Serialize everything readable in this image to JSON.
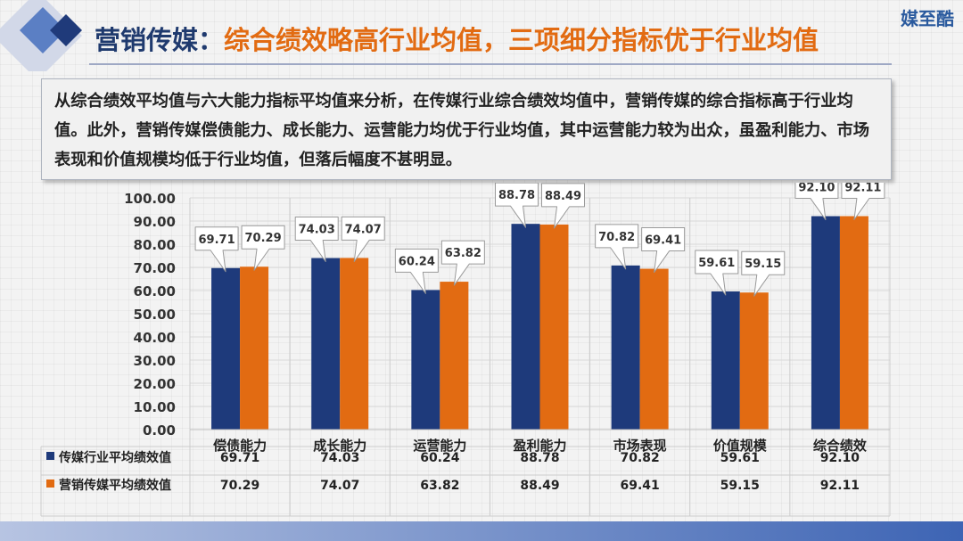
{
  "brand": "媒至酷",
  "title": {
    "prefix": "营销传媒：",
    "highlight": "综合绩效略高行业均值，三项细分指标优于行业均值"
  },
  "summary_text": "从综合绩效平均值与六大能力指标平均值来分析，在传媒行业综合绩效均值中，营销传媒的综合指标高于行业均值。此外，营销传媒偿债能力、成长能力、运营能力均优于行业均值，其中运营能力较为出众，虽盈利能力、市场表现和价值规模均低于行业均值，但落后幅度不甚明显。",
  "colors": {
    "navy": "#1e3a7b",
    "orange": "#e26b12",
    "title_navy": "#1f3a6e",
    "accent_blue": "#2a5a9e"
  },
  "chart_data": {
    "type": "bar",
    "categories": [
      "偿债能力",
      "成长能力",
      "运营能力",
      "盈利能力",
      "市场表现",
      "价值规模",
      "综合绩效"
    ],
    "series": [
      {
        "name": "传媒行业平均绩效值",
        "values": [
          69.71,
          74.03,
          60.24,
          88.78,
          70.82,
          59.61,
          92.1
        ],
        "labels": [
          "69.71",
          "74.03",
          "60.24",
          "88.78",
          "70.82",
          "59.61",
          "92.10"
        ]
      },
      {
        "name": "营销传媒平均绩效值",
        "values": [
          70.29,
          74.07,
          63.82,
          88.49,
          69.41,
          59.15,
          92.11
        ],
        "labels": [
          "70.29",
          "74.07",
          "63.82",
          "88.49",
          "69.41",
          "59.15",
          "92.11"
        ]
      }
    ],
    "ylim": [
      0,
      100
    ],
    "yticks": [
      "0.00",
      "10.00",
      "20.00",
      "30.00",
      "40.00",
      "50.00",
      "60.00",
      "70.00",
      "80.00",
      "90.00",
      "100.00"
    ],
    "grid": true,
    "data_table": true,
    "legend": "data-table"
  }
}
